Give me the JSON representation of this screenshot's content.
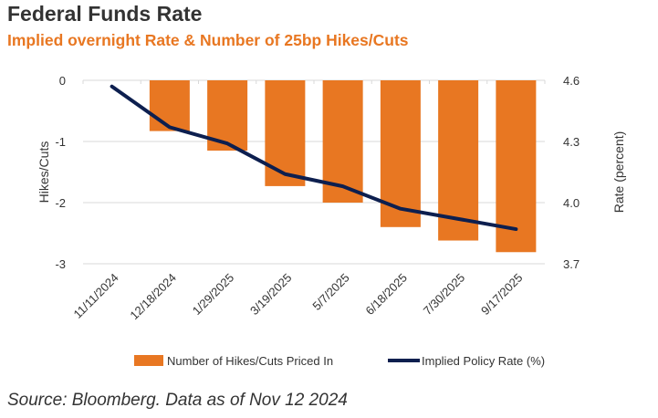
{
  "title": "Federal Funds Rate",
  "subtitle": "Implied overnight Rate & Number of 25bp Hikes/Cuts",
  "source": "Source: Bloomberg. Data as of Nov 12 2024",
  "chart_data": {
    "type": "bar+line",
    "categories": [
      "11/11/2024",
      "12/18/2024",
      "1/29/2025",
      "3/19/2025",
      "5/7/2025",
      "6/18/2025",
      "7/30/2025",
      "9/17/2025"
    ],
    "series": [
      {
        "name": "Number of Hikes/Cuts Priced In",
        "type": "bar",
        "axis": "left",
        "color": "#e87722",
        "values": [
          0,
          -0.83,
          -1.15,
          -1.73,
          -2.0,
          -2.4,
          -2.62,
          -2.81
        ]
      },
      {
        "name": "Implied Policy Rate (%)",
        "type": "line",
        "axis": "right",
        "color": "#0d1f4f",
        "values": [
          4.57,
          4.37,
          4.29,
          4.14,
          4.08,
          3.97,
          3.92,
          3.87
        ]
      }
    ],
    "ylabel_left": "Hikes/Cuts",
    "ylabel_right": "Rate (percent)",
    "ylim_left": [
      -3,
      0
    ],
    "ylim_right": [
      3.7,
      4.6
    ],
    "yticks_left": [
      "0",
      "-1",
      "-2",
      "-3"
    ],
    "yticks_right": [
      "4.6",
      "4.3",
      "4.0",
      "3.7"
    ],
    "grid": true,
    "legend_position": "bottom"
  }
}
